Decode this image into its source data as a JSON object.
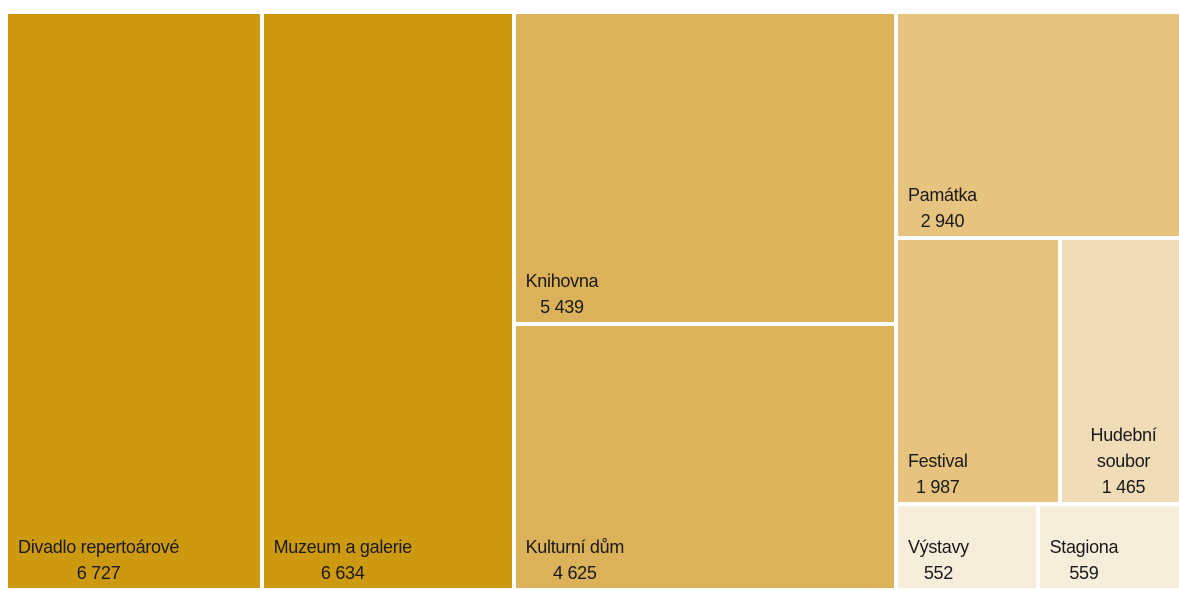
{
  "chart_data": {
    "type": "treemap",
    "categories": [
      "Divadlo repertoárové",
      "Muzeum a galerie",
      "Knihovna",
      "Kulturní dům",
      "Památka",
      "Festival",
      "Hudební soubor",
      "Výstavy",
      "Stagiona"
    ],
    "values": [
      6727,
      6634,
      5439,
      4625,
      2940,
      1987,
      1465,
      552,
      559
    ],
    "value_labels": [
      "6 727",
      "6 634",
      "5 439",
      "4 625",
      "2 940",
      "1 987",
      "1 465",
      "552",
      "559"
    ],
    "colors": [
      "#cc9910",
      "#cc9910",
      "#dbb15a",
      "#dbb15a",
      "#e6c47f",
      "#e6c47f",
      "#f0ddb8",
      "#f6eddb",
      "#f6eddb"
    ]
  }
}
